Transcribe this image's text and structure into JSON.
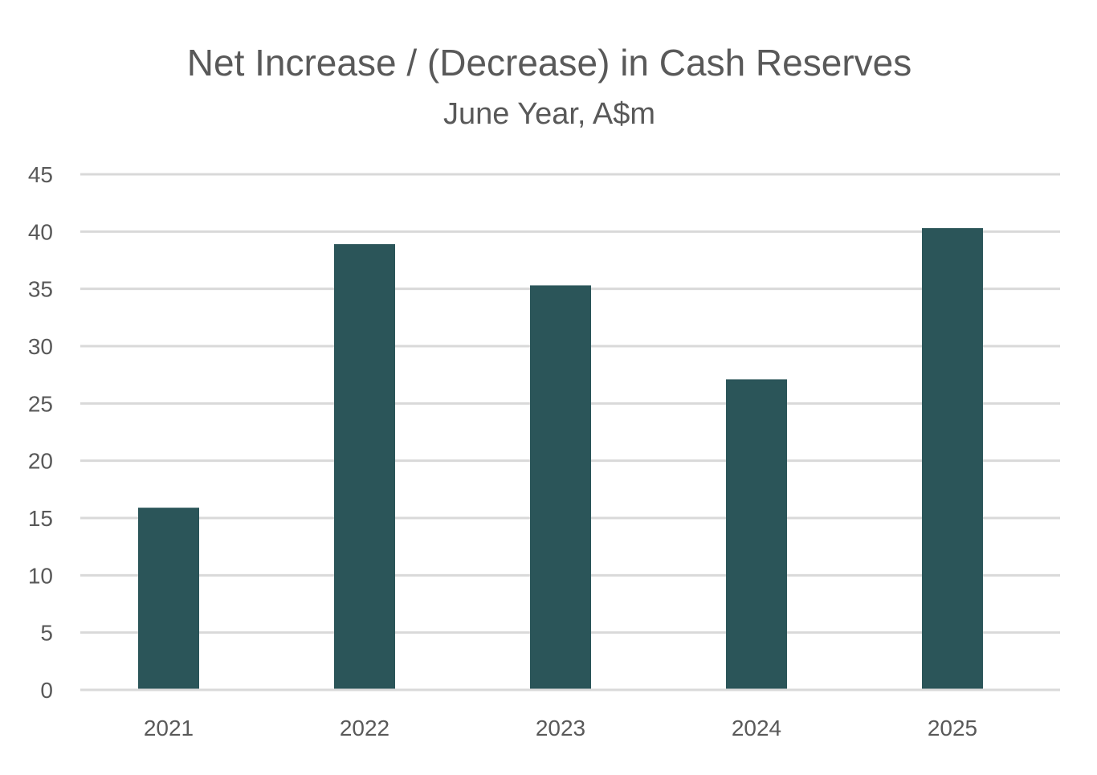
{
  "chart_data": {
    "type": "bar",
    "title": "Net Increase / (Decrease) in Cash Reserves",
    "subtitle": "June Year, A$m",
    "categories": [
      "2021",
      "2022",
      "2023",
      "2024",
      "2025"
    ],
    "series": [
      {
        "values": [
          15.9,
          38.9,
          35.3,
          27.1,
          40.3
        ],
        "color": "#2b5559"
      }
    ],
    "xlabel": "",
    "ylabel": "",
    "ylim": [
      0,
      45
    ],
    "yticks": [
      "0",
      "5",
      "10",
      "15",
      "20",
      "25",
      "30",
      "35",
      "40",
      "45"
    ],
    "grid": true,
    "legend": "none"
  },
  "colors": {
    "bar": "#2b5559",
    "grid": "#d9d9d9",
    "text": "#595959",
    "background": "#ffffff"
  }
}
